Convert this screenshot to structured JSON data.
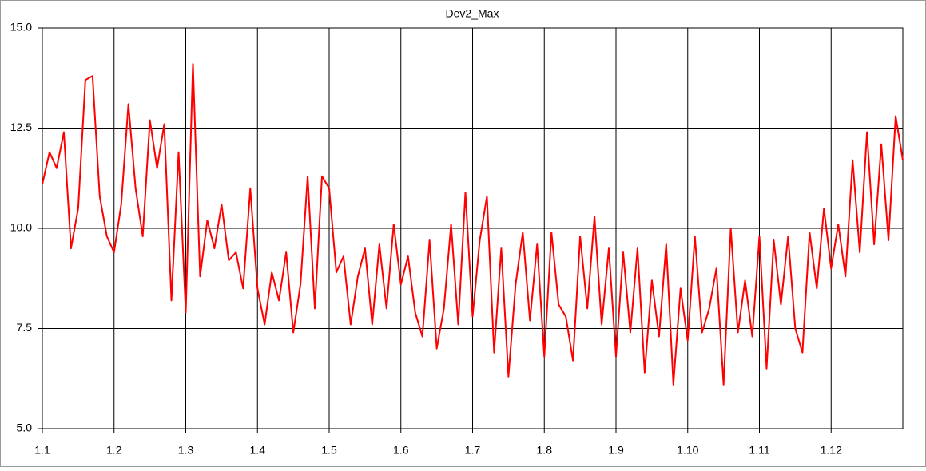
{
  "chart_data": {
    "type": "line",
    "title": "Dev2_Max",
    "categories": [
      "1.1",
      null,
      null,
      null,
      null,
      null,
      null,
      null,
      null,
      null,
      "1.2",
      null,
      null,
      null,
      null,
      null,
      null,
      null,
      null,
      null,
      "1.3",
      null,
      null,
      null,
      null,
      null,
      null,
      null,
      null,
      null,
      "1.4",
      null,
      null,
      null,
      null,
      null,
      null,
      null,
      null,
      null,
      "1.5",
      null,
      null,
      null,
      null,
      null,
      null,
      null,
      null,
      null,
      "1.6",
      null,
      null,
      null,
      null,
      null,
      null,
      null,
      null,
      null,
      "1.7",
      null,
      null,
      null,
      null,
      null,
      null,
      null,
      null,
      null,
      "1.8",
      null,
      null,
      null,
      null,
      null,
      null,
      null,
      null,
      null,
      "1.9",
      null,
      null,
      null,
      null,
      null,
      null,
      null,
      null,
      null,
      "1.10",
      null,
      null,
      null,
      null,
      null,
      null,
      null,
      null,
      null,
      "1.11",
      null,
      null,
      null,
      null,
      null,
      null,
      null,
      null,
      null,
      "1.12",
      null,
      null,
      null,
      null,
      null,
      null,
      null,
      null,
      null,
      null
    ],
    "values": [
      11.1,
      11.9,
      11.5,
      12.4,
      9.5,
      10.5,
      13.7,
      13.8,
      10.8,
      9.8,
      9.4,
      10.6,
      13.1,
      11.0,
      9.8,
      12.7,
      11.5,
      12.6,
      8.2,
      11.9,
      7.9,
      14.1,
      8.8,
      10.2,
      9.5,
      10.6,
      9.2,
      9.4,
      8.5,
      11.0,
      8.5,
      7.6,
      8.9,
      8.2,
      9.4,
      7.4,
      8.6,
      11.3,
      8.0,
      11.3,
      11.0,
      8.9,
      9.3,
      7.6,
      8.8,
      9.5,
      7.6,
      9.6,
      8.0,
      10.1,
      8.6,
      9.3,
      7.9,
      7.3,
      9.7,
      7.0,
      8.0,
      10.1,
      7.6,
      10.9,
      7.8,
      9.7,
      10.8,
      6.9,
      9.5,
      6.3,
      8.6,
      9.9,
      7.7,
      9.6,
      6.8,
      9.9,
      8.1,
      7.8,
      6.7,
      9.8,
      8.0,
      10.3,
      7.6,
      9.5,
      6.8,
      9.4,
      7.4,
      9.5,
      6.4,
      8.7,
      7.3,
      9.6,
      6.1,
      8.5,
      7.2,
      9.8,
      7.4,
      8.0,
      9.0,
      6.1,
      10.0,
      7.4,
      8.7,
      7.3,
      9.8,
      6.5,
      9.7,
      8.1,
      9.8,
      7.5,
      6.9,
      9.9,
      8.5,
      10.5,
      9.0,
      10.1,
      8.8,
      11.7,
      9.4,
      12.4,
      9.6,
      12.1,
      9.7,
      12.8,
      11.7
    ],
    "color": "#ff0000",
    "ylim": [
      5,
      15
    ],
    "yticks": [
      {
        "value": 5,
        "label": "5.0"
      },
      {
        "value": 7.5,
        "label": "7.5"
      },
      {
        "value": 10,
        "label": "10.0"
      },
      {
        "value": 12.5,
        "label": "12.5"
      },
      {
        "value": 15,
        "label": "15.0"
      }
    ],
    "grid": true
  }
}
